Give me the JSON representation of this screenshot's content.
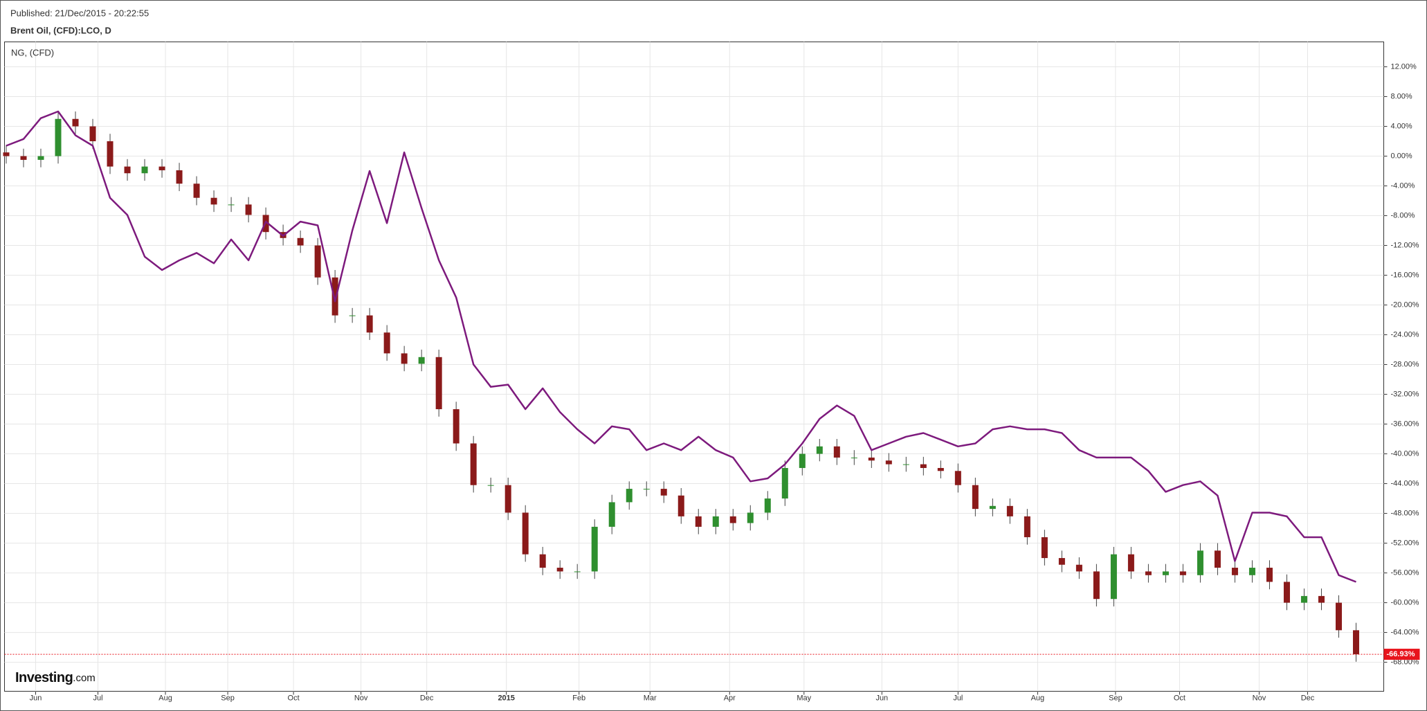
{
  "header": {
    "published": "Published: 21/Dec/2015 - 20:22:55",
    "symbol": "Brent Oil, (CFD):LCO, D"
  },
  "brand": {
    "name": "Investing",
    "suffix": ".com"
  },
  "chart_data": {
    "type": "candlestick",
    "categories": [
      null,
      null,
      null,
      null,
      null,
      null,
      null,
      null,
      null,
      null,
      null,
      null,
      null,
      null,
      null,
      null,
      null,
      null,
      null,
      null,
      null,
      null,
      null,
      null,
      null,
      null,
      null,
      null,
      null,
      null,
      null,
      null,
      null,
      null,
      null,
      null,
      null,
      null,
      null,
      null,
      null,
      null,
      null,
      null,
      null,
      null,
      null,
      null,
      null,
      null,
      null,
      null,
      null,
      null,
      null,
      null,
      null,
      null,
      null,
      null,
      null,
      null,
      null,
      null,
      null,
      null,
      null,
      null,
      null,
      null,
      null,
      null,
      null,
      null,
      null,
      null,
      null,
      null,
      null
    ],
    "open": [
      0.5,
      0,
      -0.5,
      0,
      5,
      4,
      2,
      -1.4,
      -2.3,
      -1.4,
      -1.9,
      -3.7,
      -5.6,
      -6.5,
      -6.5,
      -7.9,
      -10.2,
      -11,
      -12,
      -16.3,
      -21.4,
      -21.4,
      -23.7,
      -26.5,
      -27.9,
      -27,
      -34,
      -38.6,
      -44.2,
      -44.2,
      -47.9,
      -53.5,
      -55.3,
      -55.8,
      -55.8,
      -49.8,
      -46.5,
      -44.7,
      -44.7,
      -45.6,
      -48.4,
      -49.8,
      -48.4,
      -49.3,
      -47.9,
      -46,
      -41.9,
      -40,
      -39,
      -40.5,
      -40.5,
      -40.9,
      -41.4,
      -41.4,
      -41.9,
      -42.3,
      -44.2,
      -47.4,
      -47,
      -48.4,
      -51.2,
      -54,
      -54.9,
      -55.8,
      -59.5,
      -53.5,
      -55.8,
      -56.3,
      -55.8,
      -56.3,
      -53,
      -55.3,
      -56.3,
      -55.3,
      -57.2,
      -60,
      -59.1,
      -60,
      -63.7
    ],
    "high": [
      1.5,
      1,
      1,
      6,
      6,
      5,
      3,
      -0.4,
      -0.4,
      -0.4,
      -0.9,
      -2.7,
      -4.6,
      -5.5,
      -5.5,
      -6.9,
      -9.2,
      -10,
      -11,
      -15.3,
      -20.4,
      -20.4,
      -22.7,
      -25.5,
      -26,
      -26,
      -33,
      -37.6,
      -43.2,
      -43.2,
      -46.9,
      -52.5,
      -54.3,
      -54.8,
      -48.8,
      -45.5,
      -43.7,
      -43.7,
      -43.7,
      -44.6,
      -47.4,
      -47.4,
      -47.4,
      -46.9,
      -45,
      -40.9,
      -39,
      -38,
      -38,
      -39.5,
      -39.5,
      -39.9,
      -40.4,
      -40.4,
      -40.9,
      -41.3,
      -43.2,
      -46,
      -46,
      -47.4,
      -50.2,
      -53,
      -53.9,
      -54.8,
      -52.5,
      -52.5,
      -54.8,
      -54.8,
      -54.8,
      -52,
      -52,
      -54.3,
      -54.3,
      -54.3,
      -56.2,
      -58.1,
      -58.1,
      -59,
      -62.7
    ],
    "low": [
      -1,
      -1.5,
      -1.5,
      -1,
      3,
      1,
      -2.4,
      -3.3,
      -3.3,
      -2.9,
      -4.7,
      -6.6,
      -7.5,
      -7.5,
      -8.9,
      -11.2,
      -12,
      -13,
      -17.3,
      -22.4,
      -22.4,
      -24.7,
      -27.5,
      -28.9,
      -28.9,
      -35,
      -39.6,
      -45.2,
      -45.2,
      -48.9,
      -54.5,
      -56.3,
      -56.8,
      -56.8,
      -56.8,
      -50.8,
      -47.5,
      -45.7,
      -46.6,
      -49.4,
      -50.8,
      -50.8,
      -50.3,
      -50.3,
      -48.9,
      -47,
      -42.9,
      -41,
      -41.5,
      -41.5,
      -41.9,
      -42.4,
      -42.4,
      -42.9,
      -43.3,
      -45.2,
      -48.4,
      -48.4,
      -49.4,
      -52.2,
      -55,
      -55.9,
      -56.8,
      -60.5,
      -60.5,
      -56.8,
      -57.3,
      -57.3,
      -57.3,
      -57.3,
      -56.3,
      -57.3,
      -57.3,
      -58.2,
      -61,
      -61,
      -61,
      -64.7,
      -67.93
    ],
    "close": [
      0,
      -0.5,
      0,
      5,
      4,
      2,
      -1.4,
      -2.3,
      -1.4,
      -1.9,
      -3.7,
      -5.6,
      -6.5,
      -6.5,
      -7.9,
      -10.2,
      -11,
      -12,
      -16.3,
      -21.4,
      -21.4,
      -23.7,
      -26.5,
      -27.9,
      -27,
      -34,
      -38.6,
      -44.2,
      -44.2,
      -47.9,
      -53.5,
      -55.3,
      -55.8,
      -55.8,
      -49.8,
      -46.5,
      -44.7,
      -44.7,
      -45.6,
      -48.4,
      -49.8,
      -48.4,
      -49.3,
      -47.9,
      -46,
      -41.9,
      -40,
      -39,
      -40.5,
      -40.5,
      -40.9,
      -41.4,
      -41.4,
      -41.9,
      -42.3,
      -44.2,
      -47.4,
      -47,
      -48.4,
      -51.2,
      -54,
      -54.9,
      -55.8,
      -59.5,
      -53.5,
      -55.8,
      -56.3,
      -55.8,
      -56.3,
      -53,
      -55.3,
      -56.3,
      -55.3,
      -57.2,
      -60,
      -59.1,
      -60,
      -63.7,
      -66.93
    ],
    "up_color": "#2f8f2f",
    "down_color": "#8b1a1a",
    "wick_color": "#444444",
    "series": [
      {
        "name": "NG,  (CFD)",
        "type": "line",
        "color": "#7d1a7d",
        "values": [
          1.4,
          2.3,
          5.1,
          6,
          2.8,
          1.4,
          -5.6,
          -7.9,
          -13.5,
          -15.3,
          -14,
          -13,
          -14.4,
          -11.2,
          -14,
          -8.8,
          -10.7,
          -8.8,
          -9.3,
          -19.5,
          -10,
          -2,
          -9,
          0.5,
          -7,
          -14,
          -19,
          -28,
          -31,
          -30.7,
          -34,
          -31.2,
          -34.4,
          -36.7,
          -38.6,
          -36.3,
          -36.7,
          -39.5,
          -38.6,
          -39.5,
          -37.7,
          -39.5,
          -40.5,
          -43.7,
          -43.3,
          -41.4,
          -38.6,
          -35.3,
          -33.5,
          -34.9,
          -39.5,
          -38.6,
          -37.7,
          -37.2,
          -38.1,
          -39,
          -38.6,
          -36.7,
          -36.3,
          -36.7,
          -36.7,
          -37.2,
          -39.5,
          -40.5,
          -40.5,
          -40.5,
          -42.3,
          -45.1,
          -44.2,
          -43.7,
          -45.6,
          -54.4,
          -47.9,
          -47.9,
          -48.4,
          -51.2,
          -51.2,
          -56.3,
          -57.2
        ]
      }
    ],
    "last_value": -66.93,
    "last_value_label": "-66.93%",
    "last_color": "#e8141c",
    "ylim": [
      -71.9,
      15.35
    ],
    "yticks": [
      {
        "value": 12,
        "label": "12.00%"
      },
      {
        "value": 8,
        "label": "8.00%"
      },
      {
        "value": 4,
        "label": "4.00%"
      },
      {
        "value": 0,
        "label": "0.00%"
      },
      {
        "value": -4,
        "label": "-4.00%"
      },
      {
        "value": -8,
        "label": "-8.00%"
      },
      {
        "value": -12,
        "label": "-12.00%"
      },
      {
        "value": -16,
        "label": "-16.00%"
      },
      {
        "value": -20,
        "label": "-20.00%"
      },
      {
        "value": -24,
        "label": "-24.00%"
      },
      {
        "value": -28,
        "label": "-28.00%"
      },
      {
        "value": -32,
        "label": "-32.00%"
      },
      {
        "value": -36,
        "label": "-36.00%"
      },
      {
        "value": -40,
        "label": "-40.00%"
      },
      {
        "value": -44,
        "label": "-44.00%"
      },
      {
        "value": -48,
        "label": "-48.00%"
      },
      {
        "value": -52,
        "label": "-52.00%"
      },
      {
        "value": -56,
        "label": "-56.00%"
      },
      {
        "value": -60,
        "label": "-60.00%"
      },
      {
        "value": -64,
        "label": "-64.00%"
      },
      {
        "value": -68,
        "label": "-68.00%"
      }
    ],
    "xlim": [
      -0.1,
      79.6
    ],
    "xticks": [
      {
        "value": 1.7,
        "label": "Jun"
      },
      {
        "value": 5.3,
        "label": "Jul"
      },
      {
        "value": 9.2,
        "label": "Aug"
      },
      {
        "value": 12.8,
        "label": "Sep"
      },
      {
        "value": 16.6,
        "label": "Oct"
      },
      {
        "value": 20.5,
        "label": "Nov"
      },
      {
        "value": 24.3,
        "label": "Dec"
      },
      {
        "value": 28.9,
        "label": "2015"
      },
      {
        "value": 33.1,
        "label": "Feb"
      },
      {
        "value": 37.2,
        "label": "Mar"
      },
      {
        "value": 41.8,
        "label": "Apr"
      },
      {
        "value": 46.1,
        "label": "May"
      },
      {
        "value": 50.6,
        "label": "Jun"
      },
      {
        "value": 55,
        "label": "Jul"
      },
      {
        "value": 59.6,
        "label": "Aug"
      },
      {
        "value": 64.1,
        "label": "Sep"
      },
      {
        "value": 67.8,
        "label": "Oct"
      },
      {
        "value": 72.4,
        "label": "Nov"
      },
      {
        "value": 75.2,
        "label": "Dec"
      }
    ],
    "grid": true
  }
}
